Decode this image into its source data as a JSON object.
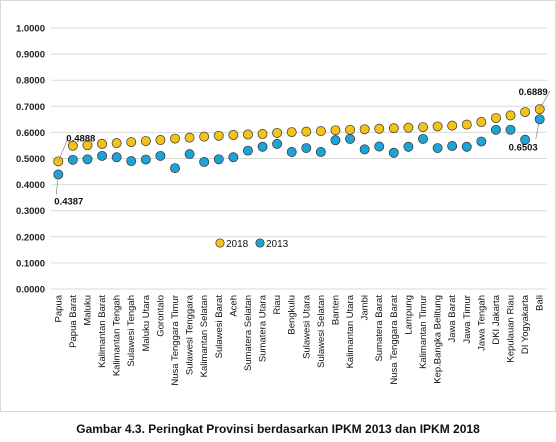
{
  "caption": "Gambar 4.3. Peringkat Provinsi berdasarkan IPKM 2013 dan IPKM 2018",
  "colors": {
    "series_2018": "#F3C31A",
    "series_2013": "#1EA3D6",
    "grid": "#d9d9d9",
    "marker_edge": "#333333"
  },
  "chart_data": {
    "type": "scatter",
    "ylim": [
      0,
      1
    ],
    "yticks": [
      "0.0000",
      "0.1000",
      "0.2000",
      "0.3000",
      "0.4000",
      "0.5000",
      "0.6000",
      "0.7000",
      "0.8000",
      "0.9000",
      "1.0000"
    ],
    "grid": true,
    "legend_position": "lower-center",
    "categories": [
      "Papua",
      "Papua Barat",
      "Maluku",
      "Kalimantan Barat",
      "Kalimantan Tengah",
      "Sulawesi Tengah",
      "Maluku Utara",
      "Gorontalo",
      "Nusa Tenggara Timur",
      "Sulawesi Tenggara",
      "Kalimantan Selatan",
      "Sulawesi Barat",
      "Aceh",
      "Sumatera Selatan",
      "Sumatera Utara",
      "Riau",
      "Bengkulu",
      "Sulawesi Utara",
      "Sulawesi Selatan",
      "Banten",
      "Kalimantan Utara",
      "Jambi",
      "Sumatera Barat",
      "Nusa Tenggara Barat",
      "Lampung",
      "Kalimantan Timur",
      "Kep.Bangka Belitung",
      "Jawa Barat",
      "Jawa Timur",
      "Jawa Tengah",
      "DKI Jakarta",
      "Kepulauan Riau",
      "DI Yogyakarta",
      "Bali"
    ],
    "series": [
      {
        "name": "2018",
        "values": [
          0.4888,
          0.549,
          0.551,
          0.556,
          0.559,
          0.563,
          0.567,
          0.571,
          0.576,
          0.58,
          0.584,
          0.587,
          0.59,
          0.592,
          0.594,
          0.598,
          0.601,
          0.603,
          0.605,
          0.608,
          0.61,
          0.612,
          0.614,
          0.616,
          0.618,
          0.62,
          0.623,
          0.626,
          0.63,
          0.64,
          0.655,
          0.665,
          0.678,
          0.6889
        ]
      },
      {
        "name": "2013",
        "values": [
          0.4387,
          0.495,
          0.497,
          0.51,
          0.505,
          0.49,
          0.496,
          0.51,
          0.463,
          0.517,
          0.487,
          0.497,
          0.505,
          0.53,
          0.545,
          0.556,
          0.525,
          0.54,
          0.525,
          0.57,
          0.575,
          0.535,
          0.546,
          0.522,
          0.545,
          0.575,
          0.54,
          0.548,
          0.545,
          0.565,
          0.61,
          0.61,
          0.572,
          0.6503
        ]
      }
    ],
    "annotations": [
      {
        "text": "0.4888",
        "series": "2018",
        "category": "Papua"
      },
      {
        "text": "0.4387",
        "series": "2013",
        "category": "Papua"
      },
      {
        "text": "0.6889",
        "series": "2018",
        "category": "Bali"
      },
      {
        "text": "0.6503",
        "series": "2013",
        "category": "Bali"
      }
    ]
  }
}
